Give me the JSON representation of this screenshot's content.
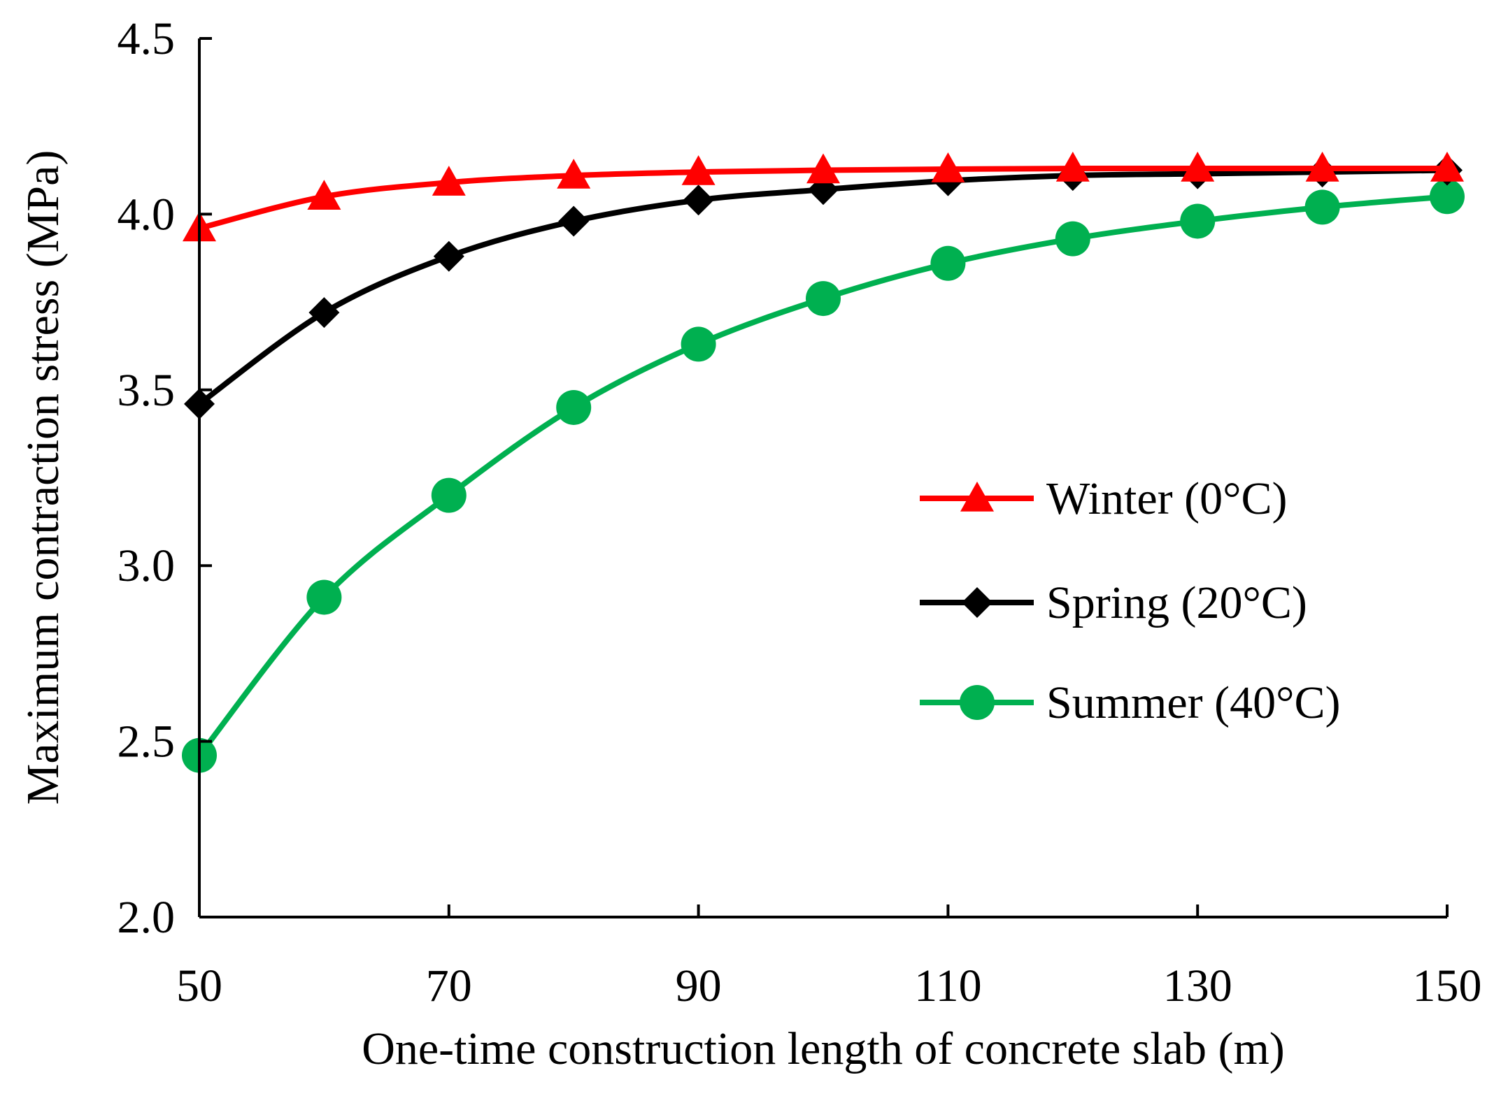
{
  "chart_data": {
    "type": "line",
    "title": "",
    "xlabel": "One-time construction length of concrete slab (m)",
    "ylabel": "Maximum contraction stress (MPa)",
    "xlim": [
      50,
      150
    ],
    "ylim": [
      2.0,
      4.5
    ],
    "xticks": [
      50,
      70,
      90,
      110,
      130,
      150
    ],
    "xtick_labels": [
      "50",
      "70",
      "90",
      "110",
      "130",
      "150"
    ],
    "yticks": [
      2.0,
      2.5,
      3.0,
      3.5,
      4.0,
      4.5
    ],
    "ytick_labels": [
      "2.0",
      "2.5",
      "3.0",
      "3.5",
      "4.0",
      "4.5"
    ],
    "grid": false,
    "legend_position": "right",
    "x": [
      50,
      60,
      70,
      80,
      90,
      100,
      110,
      120,
      130,
      140,
      150
    ],
    "series": [
      {
        "name": "Winter (0°C)",
        "color": "#ff0000",
        "marker": "triangle",
        "values": [
          3.96,
          4.05,
          4.09,
          4.11,
          4.12,
          4.125,
          4.128,
          4.13,
          4.13,
          4.13,
          4.13
        ]
      },
      {
        "name": "Spring (20°C)",
        "color": "#000000",
        "marker": "diamond",
        "values": [
          3.46,
          3.72,
          3.88,
          3.98,
          4.04,
          4.07,
          4.095,
          4.11,
          4.115,
          4.12,
          4.125
        ]
      },
      {
        "name": "Summer (40°C)",
        "color": "#00b050",
        "marker": "circle",
        "values": [
          2.46,
          2.91,
          3.2,
          3.45,
          3.63,
          3.76,
          3.86,
          3.93,
          3.98,
          4.02,
          4.05
        ]
      }
    ]
  }
}
